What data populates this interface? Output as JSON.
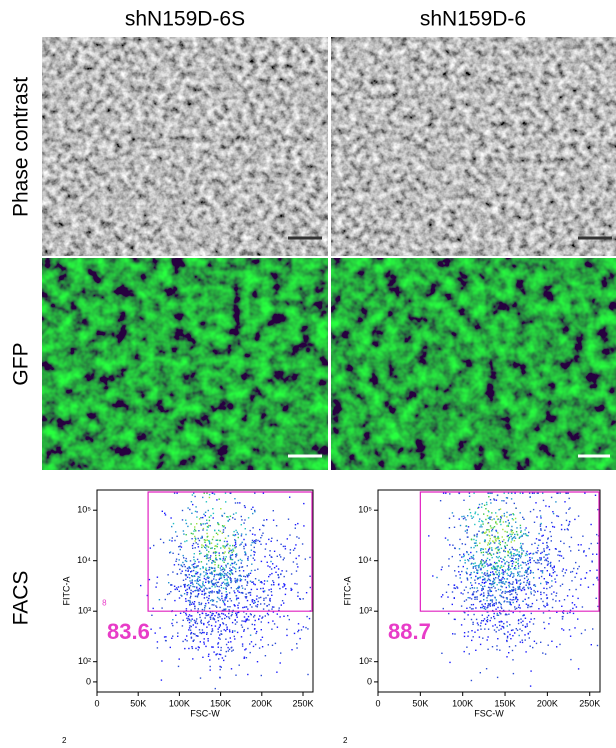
{
  "columns": [
    "shN159D-6S",
    "shN159D-6"
  ],
  "rows": [
    "Phase contrast",
    "GFP",
    "FACS"
  ],
  "facs": [
    {
      "xlabel": "FSC-W",
      "ylabel": "FITC-A",
      "gate_label": "83.6",
      "gate": {
        "x": 62000,
        "y": 1000
      },
      "corner_label": "8",
      "footnote": "2",
      "xlim": [
        0,
        262144
      ],
      "xticks": [
        0,
        {
          "value": 50000,
          "label": "50K"
        },
        {
          "value": 100000,
          "label": "100K"
        },
        {
          "value": 150000,
          "label": "150K"
        },
        {
          "value": 200000,
          "label": "200K"
        },
        {
          "value": 250000,
          "label": "250K"
        }
      ],
      "yticks": [
        0,
        {
          "value": 100,
          "label": "10²"
        },
        {
          "value": 1000,
          "label": "10³"
        },
        {
          "value": 10000,
          "label": "10⁴"
        },
        {
          "value": 100000,
          "label": "10⁵"
        }
      ]
    },
    {
      "xlabel": "FSC-W",
      "ylabel": "FITC-A",
      "gate_label": "88.7",
      "gate": {
        "x": 50000,
        "y": 1000
      },
      "footnote": "2",
      "xlim": [
        0,
        262144
      ],
      "xticks": [
        0,
        {
          "value": 50000,
          "label": "50K"
        },
        {
          "value": 100000,
          "label": "100K"
        },
        {
          "value": 150000,
          "label": "150K"
        },
        {
          "value": 200000,
          "label": "200K"
        },
        {
          "value": 250000,
          "label": "250K"
        }
      ],
      "yticks": [
        0,
        {
          "value": 100,
          "label": "10²"
        },
        {
          "value": 1000,
          "label": "10³"
        },
        {
          "value": 10000,
          "label": "10⁴"
        },
        {
          "value": 100000,
          "label": "10⁵"
        }
      ]
    }
  ]
}
